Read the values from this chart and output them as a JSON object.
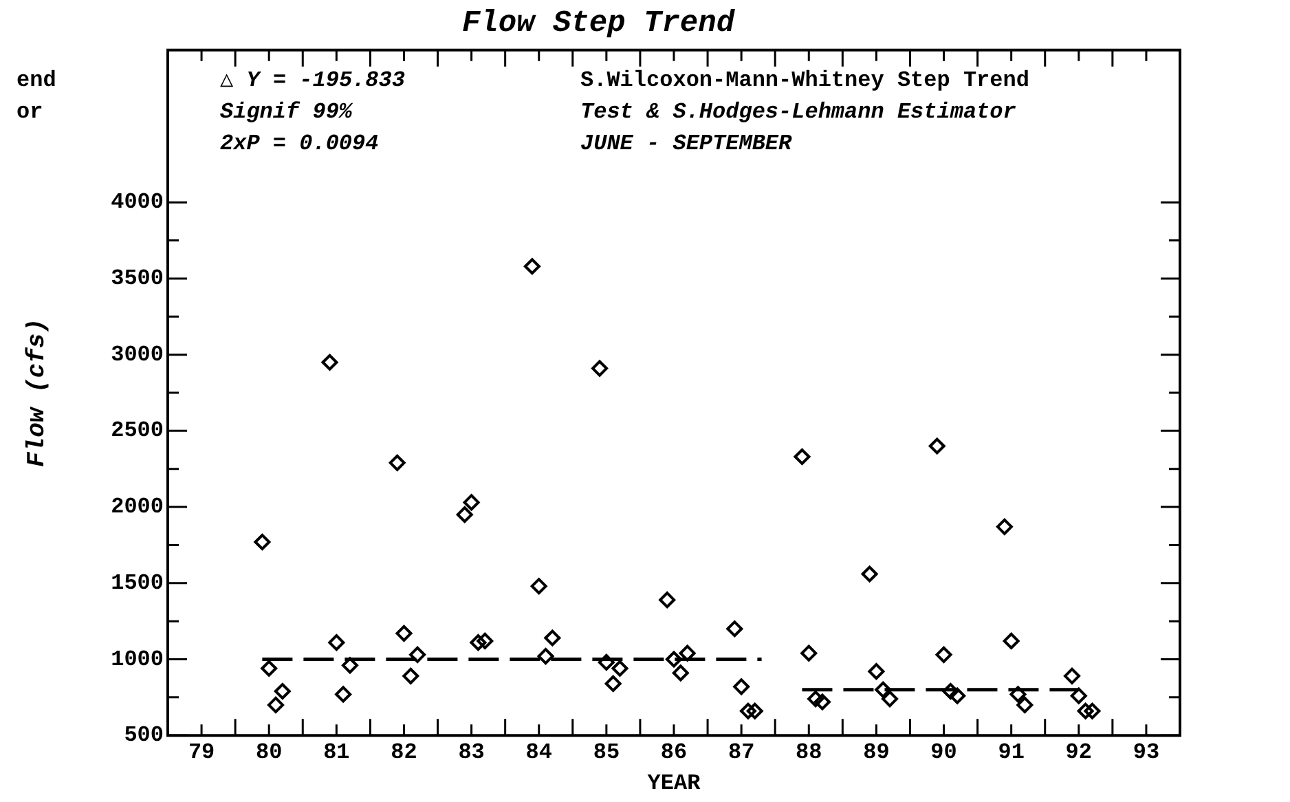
{
  "chart_data": {
    "type": "scatter",
    "title": "Flow Step Trend",
    "xlabel": "YEAR",
    "ylabel": "Flow (cfs)",
    "annotations": [
      "△ Y = -195.833",
      "Signif 99%",
      "2xP = 0.0094",
      "S.Wilcoxon-Mann-Whitney Step Trend",
      "Test & S.Hodges-Lehmann Estimator",
      "JUNE - SEPTEMBER",
      "end",
      "or"
    ],
    "xlim": [
      78.5,
      93.5
    ],
    "xticks": [
      79,
      {
        "value": 79.5,
        "label": null
      },
      80,
      {
        "value": 80.5,
        "label": null
      },
      81,
      {
        "value": 81.5,
        "label": null
      },
      82,
      {
        "value": 82.5,
        "label": null
      },
      83,
      {
        "value": 83.5,
        "label": null
      },
      84,
      {
        "value": 84.5,
        "label": null
      },
      85,
      {
        "value": 85.5,
        "label": null
      },
      86,
      {
        "value": 86.5,
        "label": null
      },
      87,
      {
        "value": 87.5,
        "label": null
      },
      88,
      {
        "value": 88.5,
        "label": null
      },
      89,
      {
        "value": 89.5,
        "label": null
      },
      90,
      {
        "value": 90.5,
        "label": null
      },
      91,
      {
        "value": 91.5,
        "label": null
      },
      92,
      {
        "value": 92.5,
        "label": null
      },
      93
    ],
    "ylim": [
      500,
      5000
    ],
    "yticks": [
      500,
      {
        "value": 750,
        "label": null
      },
      1000,
      {
        "value": 1250,
        "label": null
      },
      1500,
      {
        "value": 1750,
        "label": null
      },
      2000,
      {
        "value": 2250,
        "label": null
      },
      2500,
      {
        "value": 2750,
        "label": null
      },
      3000,
      {
        "value": 3250,
        "label": null
      },
      3500,
      {
        "value": 3750,
        "label": null
      },
      4000
    ],
    "grid": false,
    "legend": false,
    "marker": "diamond",
    "series": [
      {
        "color": "#000000",
        "x": [
          79.9,
          80,
          80.1,
          80.2,
          80.9,
          81,
          81.1,
          81.2,
          81.9,
          82,
          82.1,
          82.2,
          82.9,
          83,
          83.1,
          83.2,
          83.9,
          84,
          84.1,
          84.2,
          84.9,
          85,
          85.1,
          85.2,
          85.9,
          86,
          86.1,
          86.2,
          86.9,
          87,
          87.1,
          87.2,
          87.9,
          88,
          88.1,
          88.2,
          88.9,
          89,
          89.1,
          89.2,
          89.9,
          90,
          90.1,
          90.2,
          90.9,
          91,
          91.1,
          91.2,
          91.9,
          92,
          92.1,
          92.2
        ],
        "values": [
          1770,
          940,
          700,
          790,
          2950,
          1110,
          770,
          960,
          2290,
          1170,
          890,
          1030,
          1950,
          2030,
          1110,
          1120,
          3580,
          1480,
          1020,
          1140,
          2910,
          980,
          840,
          940,
          1390,
          1000,
          910,
          1040,
          1200,
          820,
          660,
          660,
          2330,
          1040,
          740,
          720,
          1560,
          920,
          800,
          740,
          2400,
          1030,
          790,
          760,
          1870,
          1120,
          770,
          700,
          890,
          760,
          660,
          660
        ]
      },
      {
        "type": "line",
        "color": "#000000",
        "line_style": "dashed",
        "marker": "none",
        "x": [
          79.9,
          87.3
        ],
        "values": [
          1000,
          1000
        ]
      },
      {
        "type": "line",
        "color": "#000000",
        "line_style": "dashed",
        "marker": "none",
        "x": [
          87.9,
          92.0
        ],
        "values": [
          800,
          800
        ]
      }
    ]
  }
}
